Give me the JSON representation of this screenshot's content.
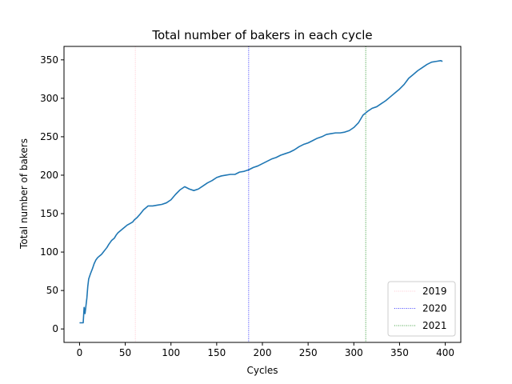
{
  "chart_data": {
    "type": "line",
    "title": "Total number of bakers in each cycle",
    "xlabel": "Cycles",
    "ylabel": "Total number of bakers",
    "xlim": [
      -17,
      417
    ],
    "ylim": [
      -17.5,
      367.5
    ],
    "xticks": [
      0,
      50,
      100,
      150,
      200,
      250,
      300,
      350,
      400
    ],
    "yticks": [
      0,
      50,
      100,
      150,
      200,
      250,
      300,
      350
    ],
    "grid": false,
    "legend_position": "lower right",
    "series": [
      {
        "color": "#1f77b4",
        "x": [
          0,
          2,
          4,
          5,
          6,
          7,
          8,
          9,
          10,
          12,
          14,
          16,
          18,
          20,
          22,
          24,
          26,
          28,
          30,
          32,
          35,
          38,
          40,
          42,
          45,
          48,
          50,
          52,
          55,
          58,
          60,
          63,
          66,
          70,
          73,
          75,
          78,
          80,
          85,
          90,
          95,
          100,
          105,
          110,
          115,
          120,
          125,
          130,
          135,
          140,
          145,
          150,
          155,
          160,
          165,
          170,
          175,
          180,
          185,
          190,
          195,
          200,
          205,
          210,
          215,
          220,
          225,
          230,
          235,
          240,
          245,
          250,
          255,
          260,
          265,
          270,
          275,
          280,
          285,
          290,
          295,
          300,
          305,
          310,
          315,
          320,
          325,
          330,
          335,
          340,
          345,
          350,
          355,
          360,
          365,
          370,
          375,
          380,
          385,
          390,
          395,
          397
        ],
        "values": [
          8,
          8,
          8,
          28,
          20,
          30,
          40,
          55,
          65,
          72,
          78,
          85,
          90,
          93,
          95,
          97,
          100,
          103,
          106,
          110,
          115,
          118,
          122,
          125,
          128,
          131,
          133,
          135,
          137,
          139,
          142,
          145,
          149,
          155,
          158,
          160,
          160,
          160,
          161,
          162,
          164,
          168,
          175,
          181,
          185,
          182,
          180,
          182,
          186,
          190,
          193,
          197,
          199,
          200,
          201,
          201,
          204,
          205,
          207,
          210,
          212,
          215,
          218,
          221,
          223,
          226,
          228,
          230,
          233,
          237,
          240,
          242,
          245,
          248,
          250,
          253,
          254,
          255,
          255,
          256,
          258,
          262,
          268,
          278,
          283,
          287,
          289,
          293,
          297,
          302,
          307,
          312,
          318,
          326,
          331,
          336,
          340,
          344,
          347,
          348,
          349,
          348
        ]
      }
    ],
    "vlines": [
      {
        "x": 61,
        "label": "2019",
        "color": "#ffb6c1"
      },
      {
        "x": 185,
        "label": "2020",
        "color": "#0000ff"
      },
      {
        "x": 313,
        "label": "2021",
        "color": "#008000"
      }
    ]
  }
}
